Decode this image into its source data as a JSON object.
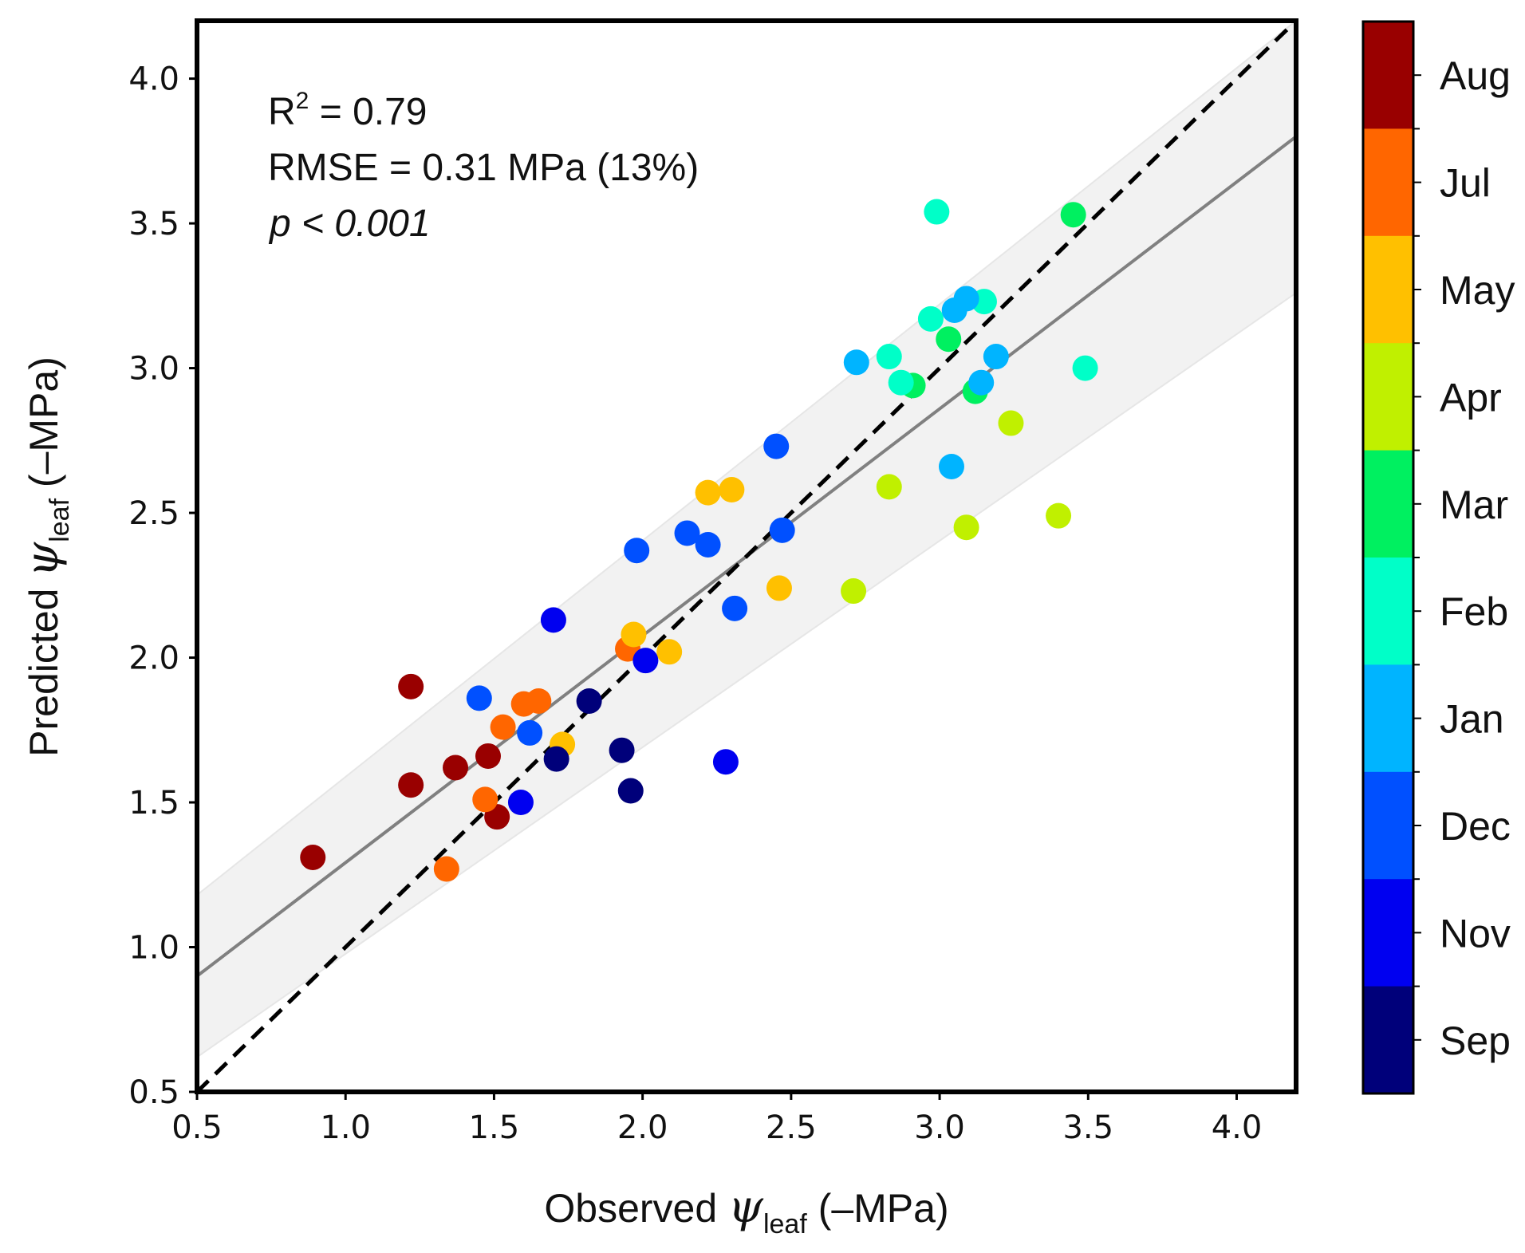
{
  "chart_data": {
    "type": "scatter",
    "xlim": [
      0.5,
      4.2
    ],
    "ylim": [
      0.5,
      4.2
    ],
    "x_ticks": [
      "0.5",
      "1.0",
      "1.5",
      "2.0",
      "2.5",
      "3.0",
      "3.5",
      "4.0"
    ],
    "y_ticks": [
      "0.5",
      "1.0",
      "1.5",
      "2.0",
      "2.5",
      "3.0",
      "3.5",
      "4.0"
    ],
    "xlabel": {
      "prefix": "Observed ",
      "symbol": "ψ",
      "subscript": "leaf",
      "suffix": " (–MPa)"
    },
    "ylabel": {
      "prefix": "Predicted ",
      "symbol": "ψ",
      "subscript": "leaf",
      "suffix": " (–MPa)"
    },
    "annotations": {
      "r2_label": "R",
      "r2_sup": "2",
      "r2_value": " = 0.79",
      "rmse": "RMSE = 0.31 MPa (13%)",
      "p_letter": "p",
      "p_value": " < 0.001"
    },
    "one_to_one_line": {
      "from": [
        0.5,
        0.5
      ],
      "to": [
        4.2,
        4.2
      ],
      "style": "dashed",
      "color": "#000000"
    },
    "fit_line": {
      "from": [
        0.5,
        0.9
      ],
      "to": [
        4.2,
        3.8
      ],
      "color": "#808080"
    },
    "confidence_band": {
      "upper": [
        [
          0.5,
          1.18
        ],
        [
          4.2,
          4.2
        ]
      ],
      "lower": [
        [
          0.5,
          0.62
        ],
        [
          4.2,
          3.26
        ]
      ],
      "color": "#f2f2f2"
    },
    "colorbar": {
      "labels": [
        "Aug",
        "Jul",
        "May",
        "Apr",
        "Mar",
        "Feb",
        "Jan",
        "Dec",
        "Nov",
        "Sep"
      ],
      "colors": [
        "#990000",
        "#ff6600",
        "#ffc000",
        "#c0f000",
        "#00f060",
        "#00ffc8",
        "#00b4ff",
        "#0050ff",
        "#0000f0",
        "#00007a"
      ]
    },
    "points": [
      {
        "x": 0.89,
        "y": 1.31,
        "month": "Aug"
      },
      {
        "x": 1.22,
        "y": 1.9,
        "month": "Aug"
      },
      {
        "x": 1.22,
        "y": 1.56,
        "month": "Aug"
      },
      {
        "x": 1.37,
        "y": 1.62,
        "month": "Aug"
      },
      {
        "x": 1.48,
        "y": 1.66,
        "month": "Aug"
      },
      {
        "x": 1.51,
        "y": 1.45,
        "month": "Aug"
      },
      {
        "x": 1.34,
        "y": 1.27,
        "month": "Jul"
      },
      {
        "x": 1.47,
        "y": 1.51,
        "month": "Jul"
      },
      {
        "x": 1.53,
        "y": 1.76,
        "month": "Jul"
      },
      {
        "x": 1.6,
        "y": 1.84,
        "month": "Jul"
      },
      {
        "x": 1.65,
        "y": 1.85,
        "month": "Jul"
      },
      {
        "x": 1.95,
        "y": 2.03,
        "month": "Jul"
      },
      {
        "x": 1.73,
        "y": 1.7,
        "month": "May"
      },
      {
        "x": 1.97,
        "y": 2.08,
        "month": "May"
      },
      {
        "x": 2.09,
        "y": 2.02,
        "month": "May"
      },
      {
        "x": 2.22,
        "y": 2.57,
        "month": "May"
      },
      {
        "x": 2.3,
        "y": 2.58,
        "month": "May"
      },
      {
        "x": 2.46,
        "y": 2.24,
        "month": "May"
      },
      {
        "x": 2.71,
        "y": 2.23,
        "month": "Apr"
      },
      {
        "x": 2.83,
        "y": 2.59,
        "month": "Apr"
      },
      {
        "x": 3.09,
        "y": 2.45,
        "month": "Apr"
      },
      {
        "x": 3.24,
        "y": 2.81,
        "month": "Apr"
      },
      {
        "x": 3.4,
        "y": 2.49,
        "month": "Apr"
      },
      {
        "x": 2.91,
        "y": 2.94,
        "month": "Mar"
      },
      {
        "x": 3.03,
        "y": 3.1,
        "month": "Mar"
      },
      {
        "x": 3.12,
        "y": 2.92,
        "month": "Mar"
      },
      {
        "x": 3.45,
        "y": 3.53,
        "month": "Mar"
      },
      {
        "x": 2.83,
        "y": 3.04,
        "month": "Feb"
      },
      {
        "x": 2.87,
        "y": 2.95,
        "month": "Feb"
      },
      {
        "x": 2.97,
        "y": 3.17,
        "month": "Feb"
      },
      {
        "x": 2.99,
        "y": 3.54,
        "month": "Feb"
      },
      {
        "x": 3.15,
        "y": 3.23,
        "month": "Feb"
      },
      {
        "x": 3.49,
        "y": 3.0,
        "month": "Feb"
      },
      {
        "x": 2.72,
        "y": 3.02,
        "month": "Jan"
      },
      {
        "x": 3.04,
        "y": 2.66,
        "month": "Jan"
      },
      {
        "x": 3.05,
        "y": 3.2,
        "month": "Jan"
      },
      {
        "x": 3.09,
        "y": 3.24,
        "month": "Jan"
      },
      {
        "x": 3.14,
        "y": 2.95,
        "month": "Jan"
      },
      {
        "x": 3.19,
        "y": 3.04,
        "month": "Jan"
      },
      {
        "x": 1.45,
        "y": 1.86,
        "month": "Dec"
      },
      {
        "x": 1.62,
        "y": 1.74,
        "month": "Dec"
      },
      {
        "x": 1.98,
        "y": 2.37,
        "month": "Dec"
      },
      {
        "x": 2.15,
        "y": 2.43,
        "month": "Dec"
      },
      {
        "x": 2.22,
        "y": 2.39,
        "month": "Dec"
      },
      {
        "x": 2.31,
        "y": 2.17,
        "month": "Dec"
      },
      {
        "x": 2.45,
        "y": 2.73,
        "month": "Dec"
      },
      {
        "x": 2.47,
        "y": 2.44,
        "month": "Dec"
      },
      {
        "x": 1.59,
        "y": 1.5,
        "month": "Nov"
      },
      {
        "x": 1.7,
        "y": 2.13,
        "month": "Nov"
      },
      {
        "x": 2.01,
        "y": 1.99,
        "month": "Nov"
      },
      {
        "x": 2.28,
        "y": 1.64,
        "month": "Nov"
      },
      {
        "x": 1.71,
        "y": 1.65,
        "month": "Sep"
      },
      {
        "x": 1.82,
        "y": 1.85,
        "month": "Sep"
      },
      {
        "x": 1.93,
        "y": 1.68,
        "month": "Sep"
      },
      {
        "x": 1.96,
        "y": 1.54,
        "month": "Sep"
      }
    ]
  }
}
